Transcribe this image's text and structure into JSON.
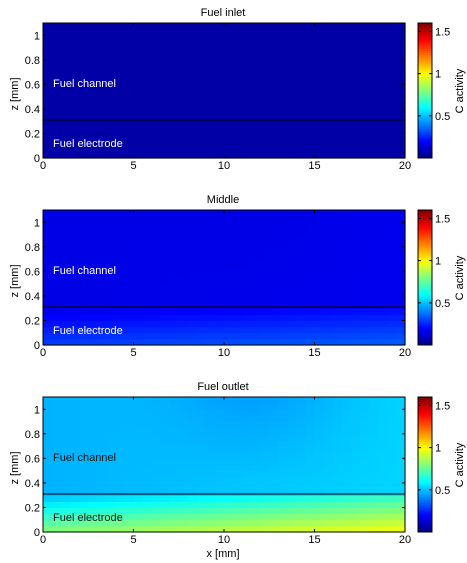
{
  "chart_data": [
    {
      "type": "heatmap",
      "title": "Fuel inlet",
      "xlabel": "",
      "ylabel": "z [mm]",
      "xlim": [
        0,
        20
      ],
      "ylim": [
        0,
        1.1
      ],
      "x_ticks": [
        "0",
        "5",
        "10",
        "15",
        "20"
      ],
      "y_ticks": [
        "0",
        "0.2",
        "0.4",
        "0.6",
        "0.8",
        "1"
      ],
      "colorbar": {
        "label": "C activity",
        "ticks": [
          "0.5",
          "1",
          "1.5"
        ],
        "range": [
          0,
          1.6
        ]
      },
      "boundary_z": 0.31,
      "annotations": [
        "Fuel channel",
        "Fuel electrode"
      ],
      "field": {
        "base": 0.06,
        "electrode_gradient": 0.0,
        "outlet_gradient": 0.0,
        "wave": 0.0
      }
    },
    {
      "type": "heatmap",
      "title": "Middle",
      "xlabel": "",
      "ylabel": "z [mm]",
      "xlim": [
        0,
        20
      ],
      "ylim": [
        0,
        1.1
      ],
      "x_ticks": [
        "0",
        "5",
        "10",
        "15",
        "20"
      ],
      "y_ticks": [
        "0",
        "0.2",
        "0.4",
        "0.6",
        "0.8",
        "1"
      ],
      "colorbar": {
        "label": "C activity",
        "ticks": [
          "0.5",
          "1",
          "1.5"
        ],
        "range": [
          0,
          1.6
        ]
      },
      "boundary_z": 0.31,
      "annotations": [
        "Fuel channel",
        "Fuel electrode"
      ],
      "field": {
        "base": 0.16,
        "electrode_gradient": 0.14,
        "outlet_gradient": 0.05,
        "wave": 0.01
      }
    },
    {
      "type": "heatmap",
      "title": "Fuel outlet",
      "xlabel": "x [mm]",
      "ylabel": "z [mm]",
      "xlim": [
        0,
        20
      ],
      "ylim": [
        0,
        1.1
      ],
      "x_ticks": [
        "0",
        "5",
        "10",
        "15",
        "20"
      ],
      "y_ticks": [
        "0",
        "0.2",
        "0.4",
        "0.6",
        "0.8",
        "1"
      ],
      "colorbar": {
        "label": "C activity",
        "ticks": [
          "0.5",
          "1",
          "1.5"
        ],
        "range": [
          0,
          1.6
        ]
      },
      "boundary_z": 0.31,
      "annotations": [
        "Fuel channel",
        "Fuel electrode"
      ],
      "field": {
        "base": 0.48,
        "electrode_gradient": 0.34,
        "outlet_gradient": 0.18,
        "wave": 0.06
      }
    }
  ]
}
